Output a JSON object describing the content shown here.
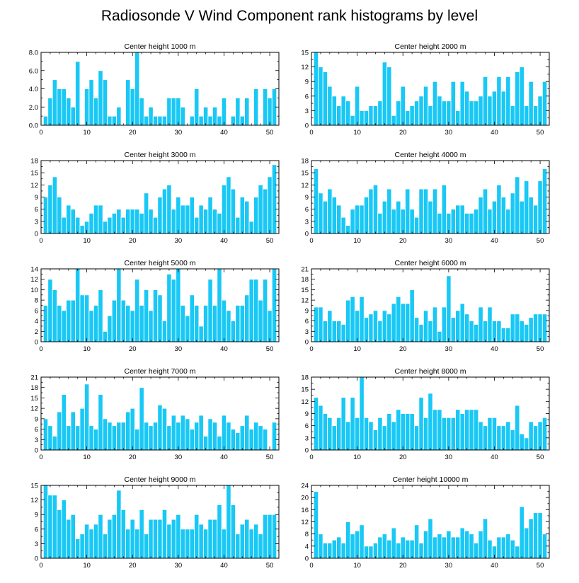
{
  "figure": {
    "title": "Radiosonde V Wind Component rank histograms by level",
    "bar_color": "#19c8f5",
    "bar_edge_color": "#ffffff",
    "axis_color": "#000000"
  },
  "chart_data": [
    {
      "type": "bar",
      "title": "Center height 1000 m",
      "x": [
        1,
        2,
        3,
        4,
        5,
        6,
        7,
        8,
        9,
        10,
        11,
        12,
        13,
        14,
        15,
        16,
        17,
        18,
        19,
        20,
        21,
        22,
        23,
        24,
        25,
        26,
        27,
        28,
        29,
        30,
        31,
        32,
        33,
        34,
        35,
        36,
        37,
        38,
        39,
        40,
        41,
        42,
        43,
        44,
        45,
        46,
        47,
        48,
        49,
        50,
        51
      ],
      "values": [
        1,
        3,
        5,
        4,
        4,
        3,
        2,
        7,
        0,
        4,
        5,
        3,
        6,
        5,
        1,
        1,
        2,
        0,
        5,
        4,
        8,
        3,
        1,
        2,
        1,
        1,
        1,
        3,
        3,
        3,
        2,
        0,
        1,
        4,
        1,
        2,
        1,
        2,
        1,
        3,
        0,
        1,
        3,
        1,
        3,
        0,
        4,
        0,
        4,
        3,
        4
      ],
      "xlim": [
        0,
        52
      ],
      "ylim": [
        0,
        8
      ],
      "xticks": [
        0,
        10,
        20,
        30,
        40,
        50
      ],
      "yticks": [
        0,
        2,
        4,
        6,
        8
      ],
      "ytick_labels": [
        "0.0",
        "2.0",
        "4.0",
        "6.0",
        "8.0"
      ]
    },
    {
      "type": "bar",
      "title": "Center height 2000 m",
      "x": [
        1,
        2,
        3,
        4,
        5,
        6,
        7,
        8,
        9,
        10,
        11,
        12,
        13,
        14,
        15,
        16,
        17,
        18,
        19,
        20,
        21,
        22,
        23,
        24,
        25,
        26,
        27,
        28,
        29,
        30,
        31,
        32,
        33,
        34,
        35,
        36,
        37,
        38,
        39,
        40,
        41,
        42,
        43,
        44,
        45,
        46,
        47,
        48,
        49,
        50,
        51
      ],
      "values": [
        15,
        12,
        11,
        8,
        6,
        4,
        6,
        5,
        2,
        8,
        3,
        3,
        4,
        4,
        5,
        13,
        12,
        2,
        5,
        8,
        3,
        4,
        5,
        6,
        8,
        4,
        9,
        6,
        5,
        5,
        9,
        3,
        9,
        7,
        5,
        5,
        6,
        10,
        6,
        7,
        10,
        7,
        10,
        4,
        11,
        12,
        4,
        9,
        4,
        6,
        9
      ],
      "xlim": [
        0,
        52
      ],
      "ylim": [
        0,
        15
      ],
      "xticks": [
        0,
        10,
        20,
        30,
        40,
        50
      ],
      "yticks": [
        0,
        3,
        6,
        9,
        12,
        15
      ],
      "ytick_labels": [
        "0",
        "3",
        "6",
        "9",
        "12",
        "15"
      ]
    },
    {
      "type": "bar",
      "title": "Center height 3000 m",
      "x": [
        1,
        2,
        3,
        4,
        5,
        6,
        7,
        8,
        9,
        10,
        11,
        12,
        13,
        14,
        15,
        16,
        17,
        18,
        19,
        20,
        21,
        22,
        23,
        24,
        25,
        26,
        27,
        28,
        29,
        30,
        31,
        32,
        33,
        34,
        35,
        36,
        37,
        38,
        39,
        40,
        41,
        42,
        43,
        44,
        45,
        46,
        47,
        48,
        49,
        50,
        51
      ],
      "values": [
        9,
        12,
        14,
        9,
        4,
        7,
        6,
        4,
        2,
        3,
        5,
        7,
        7,
        3,
        4,
        5,
        6,
        4,
        6,
        6,
        6,
        5,
        10,
        6,
        4,
        9,
        11,
        12,
        6,
        9,
        7,
        7,
        9,
        4,
        7,
        6,
        9,
        6,
        5,
        12,
        14,
        11,
        4,
        9,
        8,
        3,
        9,
        12,
        11,
        14,
        17
      ],
      "xlim": [
        0,
        52
      ],
      "ylim": [
        0,
        18
      ],
      "xticks": [
        0,
        10,
        20,
        30,
        40,
        50
      ],
      "yticks": [
        0,
        3,
        6,
        9,
        12,
        15,
        18
      ],
      "ytick_labels": [
        "0",
        "3",
        "6",
        "9",
        "12",
        "15",
        "18"
      ]
    },
    {
      "type": "bar",
      "title": "Center height 4000 m",
      "x": [
        1,
        2,
        3,
        4,
        5,
        6,
        7,
        8,
        9,
        10,
        11,
        12,
        13,
        14,
        15,
        16,
        17,
        18,
        19,
        20,
        21,
        22,
        23,
        24,
        25,
        26,
        27,
        28,
        29,
        30,
        31,
        32,
        33,
        34,
        35,
        36,
        37,
        38,
        39,
        40,
        41,
        42,
        43,
        44,
        45,
        46,
        47,
        48,
        49,
        50,
        51
      ],
      "values": [
        16,
        10,
        8,
        11,
        9,
        7,
        4,
        2,
        6,
        7,
        7,
        9,
        11,
        12,
        5,
        8,
        11,
        6,
        8,
        6,
        11,
        6,
        4,
        11,
        11,
        8,
        11,
        5,
        12,
        5,
        6,
        7,
        7,
        5,
        5,
        6,
        9,
        11,
        6,
        8,
        12,
        9,
        6,
        10,
        14,
        8,
        13,
        9,
        7,
        13,
        16
      ],
      "xlim": [
        0,
        52
      ],
      "ylim": [
        0,
        18
      ],
      "xticks": [
        0,
        10,
        20,
        30,
        40,
        50
      ],
      "yticks": [
        0,
        3,
        6,
        9,
        12,
        15,
        18
      ],
      "ytick_labels": [
        "0",
        "3",
        "6",
        "9",
        "12",
        "15",
        "18"
      ]
    },
    {
      "type": "bar",
      "title": "Center height 5000 m",
      "x": [
        1,
        2,
        3,
        4,
        5,
        6,
        7,
        8,
        9,
        10,
        11,
        12,
        13,
        14,
        15,
        16,
        17,
        18,
        19,
        20,
        21,
        22,
        23,
        24,
        25,
        26,
        27,
        28,
        29,
        30,
        31,
        32,
        33,
        34,
        35,
        36,
        37,
        38,
        39,
        40,
        41,
        42,
        43,
        44,
        45,
        46,
        47,
        48,
        49,
        50,
        51
      ],
      "values": [
        7,
        12,
        10,
        7,
        6,
        8,
        8,
        14,
        9,
        9,
        6,
        7,
        10,
        2,
        5,
        8,
        14,
        8,
        7,
        6,
        12,
        7,
        10,
        6,
        10,
        9,
        4,
        13,
        12,
        14,
        7,
        5,
        9,
        7,
        3,
        7,
        12,
        7,
        14,
        8,
        6,
        4,
        7,
        7,
        9,
        12,
        12,
        8,
        12,
        6,
        14
      ],
      "xlim": [
        0,
        52
      ],
      "ylim": [
        0,
        14
      ],
      "xticks": [
        0,
        10,
        20,
        30,
        40,
        50
      ],
      "yticks": [
        0,
        2,
        4,
        6,
        8,
        10,
        12,
        14
      ],
      "ytick_labels": [
        "0",
        "2",
        "4",
        "6",
        "8",
        "10",
        "12",
        "14"
      ]
    },
    {
      "type": "bar",
      "title": "Center height 6000 m",
      "x": [
        1,
        2,
        3,
        4,
        5,
        6,
        7,
        8,
        9,
        10,
        11,
        12,
        13,
        14,
        15,
        16,
        17,
        18,
        19,
        20,
        21,
        22,
        23,
        24,
        25,
        26,
        27,
        28,
        29,
        30,
        31,
        32,
        33,
        34,
        35,
        36,
        37,
        38,
        39,
        40,
        41,
        42,
        43,
        44,
        45,
        46,
        47,
        48,
        49,
        50,
        51
      ],
      "values": [
        10,
        10,
        6,
        9,
        6,
        6,
        5,
        12,
        13,
        9,
        13,
        7,
        8,
        9,
        6,
        9,
        8,
        11,
        13,
        11,
        11,
        15,
        7,
        5,
        9,
        6,
        10,
        3,
        10,
        19,
        7,
        9,
        11,
        8,
        6,
        5,
        10,
        6,
        10,
        6,
        6,
        4,
        4,
        8,
        8,
        6,
        5,
        7,
        8,
        8,
        8
      ],
      "xlim": [
        0,
        52
      ],
      "ylim": [
        0,
        21
      ],
      "xticks": [
        0,
        10,
        20,
        30,
        40,
        50
      ],
      "yticks": [
        0,
        3,
        6,
        9,
        12,
        15,
        18,
        21
      ],
      "ytick_labels": [
        "0",
        "3",
        "6",
        "9",
        "12",
        "15",
        "18",
        "21"
      ]
    },
    {
      "type": "bar",
      "title": "Center height 7000 m",
      "x": [
        1,
        2,
        3,
        4,
        5,
        6,
        7,
        8,
        9,
        10,
        11,
        12,
        13,
        14,
        15,
        16,
        17,
        18,
        19,
        20,
        21,
        22,
        23,
        24,
        25,
        26,
        27,
        28,
        29,
        30,
        31,
        32,
        33,
        34,
        35,
        36,
        37,
        38,
        39,
        40,
        41,
        42,
        43,
        44,
        45,
        46,
        47,
        48,
        49,
        50,
        51
      ],
      "values": [
        9,
        7,
        4,
        11,
        16,
        7,
        11,
        7,
        12,
        19,
        7,
        6,
        16,
        9,
        8,
        7,
        8,
        8,
        11,
        12,
        6,
        18,
        8,
        7,
        8,
        13,
        12,
        7,
        10,
        8,
        10,
        9,
        6,
        8,
        10,
        4,
        9,
        8,
        4,
        10,
        8,
        6,
        5,
        7,
        10,
        6,
        8,
        7,
        6,
        0,
        8
      ],
      "xlim": [
        0,
        52
      ],
      "ylim": [
        0,
        21
      ],
      "xticks": [
        0,
        10,
        20,
        30,
        40,
        50
      ],
      "yticks": [
        0,
        3,
        6,
        9,
        12,
        15,
        18,
        21
      ],
      "ytick_labels": [
        "0",
        "3",
        "6",
        "9",
        "12",
        "15",
        "18",
        "21"
      ]
    },
    {
      "type": "bar",
      "title": "Center height 8000 m",
      "x": [
        1,
        2,
        3,
        4,
        5,
        6,
        7,
        8,
        9,
        10,
        11,
        12,
        13,
        14,
        15,
        16,
        17,
        18,
        19,
        20,
        21,
        22,
        23,
        24,
        25,
        26,
        27,
        28,
        29,
        30,
        31,
        32,
        33,
        34,
        35,
        36,
        37,
        38,
        39,
        40,
        41,
        42,
        43,
        44,
        45,
        46,
        47,
        48,
        49,
        50,
        51
      ],
      "values": [
        13,
        11,
        9,
        8,
        6,
        8,
        13,
        7,
        13,
        8,
        18,
        8,
        7,
        5,
        8,
        6,
        9,
        7,
        10,
        9,
        9,
        9,
        6,
        13,
        8,
        14,
        10,
        10,
        8,
        8,
        8,
        10,
        9,
        10,
        10,
        10,
        7,
        6,
        8,
        8,
        6,
        6,
        7,
        5,
        11,
        4,
        3,
        7,
        6,
        7,
        8
      ],
      "xlim": [
        0,
        52
      ],
      "ylim": [
        0,
        18
      ],
      "xticks": [
        0,
        10,
        20,
        30,
        40,
        50
      ],
      "yticks": [
        0,
        3,
        6,
        9,
        12,
        15,
        18
      ],
      "ytick_labels": [
        "0",
        "3",
        "6",
        "9",
        "12",
        "15",
        "18"
      ]
    },
    {
      "type": "bar",
      "title": "Center height 9000 m",
      "x": [
        1,
        2,
        3,
        4,
        5,
        6,
        7,
        8,
        9,
        10,
        11,
        12,
        13,
        14,
        15,
        16,
        17,
        18,
        19,
        20,
        21,
        22,
        23,
        24,
        25,
        26,
        27,
        28,
        29,
        30,
        31,
        32,
        33,
        34,
        35,
        36,
        37,
        38,
        39,
        40,
        41,
        42,
        43,
        44,
        45,
        46,
        47,
        48,
        49,
        50,
        51
      ],
      "values": [
        15,
        13,
        13,
        10,
        12,
        8,
        9,
        4,
        5,
        7,
        6,
        7,
        9,
        5,
        8,
        9,
        14,
        10,
        6,
        8,
        6,
        10,
        5,
        8,
        8,
        8,
        10,
        7,
        8,
        9,
        6,
        6,
        6,
        9,
        7,
        6,
        8,
        8,
        11,
        6,
        15,
        11,
        5,
        7,
        8,
        6,
        7,
        5,
        9,
        9,
        9
      ],
      "xlim": [
        0,
        52
      ],
      "ylim": [
        0,
        15
      ],
      "xticks": [
        0,
        10,
        20,
        30,
        40,
        50
      ],
      "yticks": [
        0,
        3,
        6,
        9,
        12,
        15
      ],
      "ytick_labels": [
        "0",
        "3",
        "6",
        "9",
        "12",
        "15"
      ]
    },
    {
      "type": "bar",
      "title": "Center height 10000 m",
      "x": [
        1,
        2,
        3,
        4,
        5,
        6,
        7,
        8,
        9,
        10,
        11,
        12,
        13,
        14,
        15,
        16,
        17,
        18,
        19,
        20,
        21,
        22,
        23,
        24,
        25,
        26,
        27,
        28,
        29,
        30,
        31,
        32,
        33,
        34,
        35,
        36,
        37,
        38,
        39,
        40,
        41,
        42,
        43,
        44,
        45,
        46,
        47,
        48,
        49,
        50,
        51
      ],
      "values": [
        22,
        8,
        5,
        5,
        6,
        7,
        5,
        12,
        8,
        9,
        11,
        4,
        4,
        5,
        7,
        8,
        6,
        10,
        5,
        7,
        6,
        6,
        11,
        5,
        9,
        13,
        7,
        8,
        7,
        9,
        7,
        7,
        10,
        9,
        8,
        5,
        9,
        13,
        6,
        4,
        7,
        7,
        8,
        6,
        4,
        17,
        10,
        13,
        15,
        15,
        8
      ],
      "xlim": [
        0,
        52
      ],
      "ylim": [
        0,
        24
      ],
      "xticks": [
        0,
        10,
        20,
        30,
        40,
        50
      ],
      "yticks": [
        0,
        4,
        8,
        12,
        16,
        20,
        24
      ],
      "ytick_labels": [
        "0",
        "4",
        "8",
        "12",
        "16",
        "20",
        "24"
      ]
    }
  ]
}
